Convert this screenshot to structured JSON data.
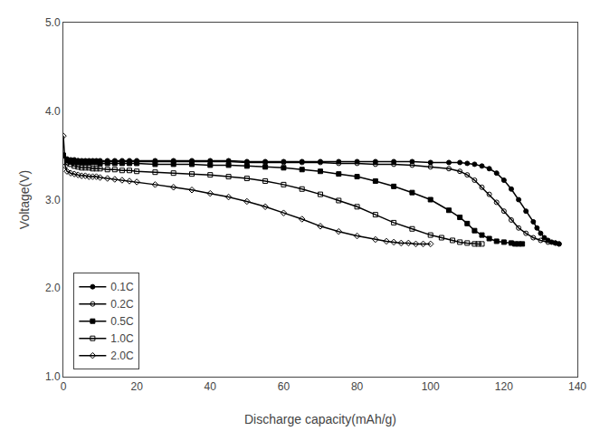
{
  "chart_data": {
    "type": "line",
    "xlabel": "Discharge capacity(mAh/g)",
    "ylabel": "Voltage(V)",
    "xlim": [
      0,
      140
    ],
    "ylim": [
      1.0,
      5.0
    ],
    "xticks": [
      0,
      20,
      40,
      60,
      80,
      100,
      120,
      140
    ],
    "yticks": [
      {
        "value": 1.0,
        "label": "1.0"
      },
      {
        "value": 2.0,
        "label": "2.0"
      },
      {
        "value": 3.0,
        "label": "3.0"
      },
      {
        "value": 4.0,
        "label": "4.0"
      },
      {
        "value": 5.0,
        "label": "5.0"
      }
    ],
    "grid": false,
    "legend": "lower left",
    "series": [
      {
        "name": "0.1C",
        "color": "#000000",
        "marker": "circle",
        "x": [
          0,
          1,
          2,
          3,
          4,
          5,
          6,
          7,
          8,
          9,
          10,
          12,
          14,
          16,
          18,
          20,
          25,
          30,
          35,
          40,
          45,
          50,
          55,
          60,
          65,
          70,
          75,
          80,
          85,
          90,
          95,
          100,
          105,
          108,
          110,
          112,
          114,
          116,
          118,
          120,
          122,
          124,
          126,
          128,
          129,
          130,
          131,
          132,
          133,
          134,
          135
        ],
        "values": [
          3.5,
          3.46,
          3.45,
          3.45,
          3.44,
          3.44,
          3.44,
          3.44,
          3.44,
          3.44,
          3.44,
          3.44,
          3.44,
          3.44,
          3.44,
          3.44,
          3.44,
          3.44,
          3.44,
          3.44,
          3.44,
          3.43,
          3.43,
          3.43,
          3.43,
          3.43,
          3.43,
          3.43,
          3.43,
          3.43,
          3.43,
          3.42,
          3.42,
          3.42,
          3.41,
          3.4,
          3.38,
          3.35,
          3.3,
          3.22,
          3.12,
          3.0,
          2.87,
          2.75,
          2.68,
          2.62,
          2.57,
          2.54,
          2.52,
          2.51,
          2.5
        ]
      },
      {
        "name": "0.2C",
        "color": "#000000",
        "marker": "circle-open",
        "x": [
          0,
          1,
          2,
          3,
          4,
          5,
          6,
          7,
          8,
          9,
          10,
          12,
          14,
          16,
          18,
          20,
          25,
          30,
          35,
          40,
          45,
          50,
          55,
          60,
          65,
          70,
          75,
          80,
          85,
          90,
          95,
          100,
          105,
          108,
          110,
          112,
          114,
          116,
          118,
          120,
          122,
          124,
          126,
          128,
          130,
          132,
          134,
          135
        ],
        "values": [
          3.5,
          3.45,
          3.44,
          3.44,
          3.44,
          3.43,
          3.43,
          3.43,
          3.43,
          3.43,
          3.43,
          3.43,
          3.43,
          3.43,
          3.43,
          3.43,
          3.43,
          3.43,
          3.43,
          3.43,
          3.43,
          3.42,
          3.42,
          3.42,
          3.42,
          3.42,
          3.41,
          3.41,
          3.4,
          3.4,
          3.39,
          3.37,
          3.35,
          3.32,
          3.28,
          3.22,
          3.14,
          3.06,
          2.97,
          2.87,
          2.77,
          2.68,
          2.62,
          2.57,
          2.54,
          2.52,
          2.51,
          2.5
        ]
      },
      {
        "name": "0.5C",
        "color": "#000000",
        "marker": "square",
        "x": [
          0,
          1,
          2,
          3,
          4,
          5,
          6,
          7,
          8,
          9,
          10,
          12,
          14,
          16,
          18,
          20,
          25,
          30,
          35,
          40,
          45,
          50,
          55,
          60,
          65,
          70,
          75,
          80,
          85,
          90,
          95,
          100,
          105,
          108,
          110,
          112,
          114,
          116,
          118,
          120,
          122,
          123,
          124,
          125
        ],
        "values": [
          3.5,
          3.44,
          3.43,
          3.42,
          3.42,
          3.42,
          3.42,
          3.42,
          3.42,
          3.42,
          3.41,
          3.41,
          3.41,
          3.41,
          3.41,
          3.41,
          3.4,
          3.4,
          3.4,
          3.39,
          3.39,
          3.38,
          3.37,
          3.36,
          3.34,
          3.32,
          3.29,
          3.26,
          3.21,
          3.15,
          3.08,
          3.0,
          2.88,
          2.8,
          2.73,
          2.65,
          2.6,
          2.56,
          2.53,
          2.52,
          2.51,
          2.5,
          2.5,
          2.5
        ]
      },
      {
        "name": "1.0C",
        "color": "#000000",
        "marker": "square-open",
        "x": [
          0,
          1,
          2,
          3,
          4,
          5,
          6,
          7,
          8,
          9,
          10,
          12,
          14,
          16,
          18,
          20,
          25,
          30,
          35,
          40,
          45,
          50,
          55,
          60,
          65,
          70,
          75,
          80,
          85,
          90,
          95,
          100,
          103,
          106,
          108,
          110,
          112,
          113,
          114
        ],
        "values": [
          3.5,
          3.42,
          3.4,
          3.38,
          3.37,
          3.36,
          3.36,
          3.36,
          3.35,
          3.35,
          3.35,
          3.34,
          3.34,
          3.33,
          3.33,
          3.32,
          3.31,
          3.3,
          3.29,
          3.28,
          3.26,
          3.24,
          3.21,
          3.17,
          3.12,
          3.06,
          2.99,
          2.92,
          2.83,
          2.74,
          2.67,
          2.6,
          2.57,
          2.54,
          2.52,
          2.51,
          2.5,
          2.5,
          2.5
        ]
      },
      {
        "name": "2.0C",
        "color": "#000000",
        "marker": "diamond-open",
        "x": [
          0,
          0.5,
          1,
          2,
          3,
          4,
          5,
          6,
          7,
          8,
          9,
          10,
          12,
          14,
          16,
          18,
          20,
          25,
          30,
          35,
          40,
          45,
          50,
          55,
          60,
          65,
          70,
          75,
          80,
          85,
          88,
          90,
          92,
          94,
          96,
          98,
          100
        ],
        "values": [
          3.72,
          3.38,
          3.32,
          3.3,
          3.29,
          3.28,
          3.27,
          3.27,
          3.26,
          3.26,
          3.26,
          3.25,
          3.24,
          3.23,
          3.22,
          3.21,
          3.2,
          3.17,
          3.14,
          3.11,
          3.07,
          3.03,
          2.98,
          2.92,
          2.85,
          2.78,
          2.7,
          2.64,
          2.59,
          2.55,
          2.53,
          2.52,
          2.51,
          2.51,
          2.5,
          2.5,
          2.5
        ]
      }
    ]
  }
}
